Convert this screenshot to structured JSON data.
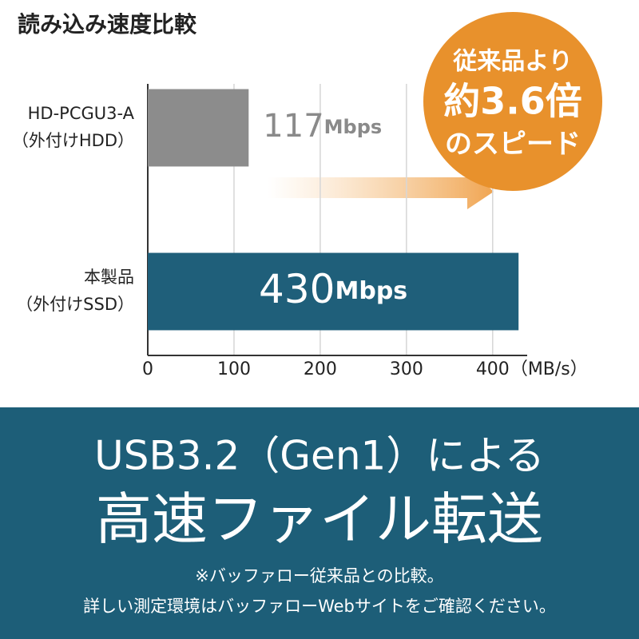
{
  "chart_data": {
    "type": "barh",
    "title": "読み込み速度比較",
    "categories": [
      [
        "HD-PCGU3-A",
        "（外付けHDD）"
      ],
      [
        "本製品",
        "（外付けSSD）"
      ]
    ],
    "values": [
      117,
      430
    ],
    "value_labels": [
      "117Mbps",
      "430Mbps"
    ],
    "colors": [
      "#8c8c8c",
      "#1f5f7a"
    ],
    "xlim": [
      0,
      440
    ],
    "xticks": [
      0,
      100,
      200,
      300,
      400
    ],
    "x_label": "（MB/s）",
    "grid": true,
    "annotation": [
      "従来品より",
      "約3.6倍",
      "のスピード"
    ]
  },
  "banner": {
    "headline": "USB3.2（Gen1）による",
    "subheadline": "高速ファイル転送",
    "notes": [
      "※バッファロー従来品との比較。",
      "詳しい測定環境はバッファローWebサイトをご確認ください。"
    ]
  }
}
